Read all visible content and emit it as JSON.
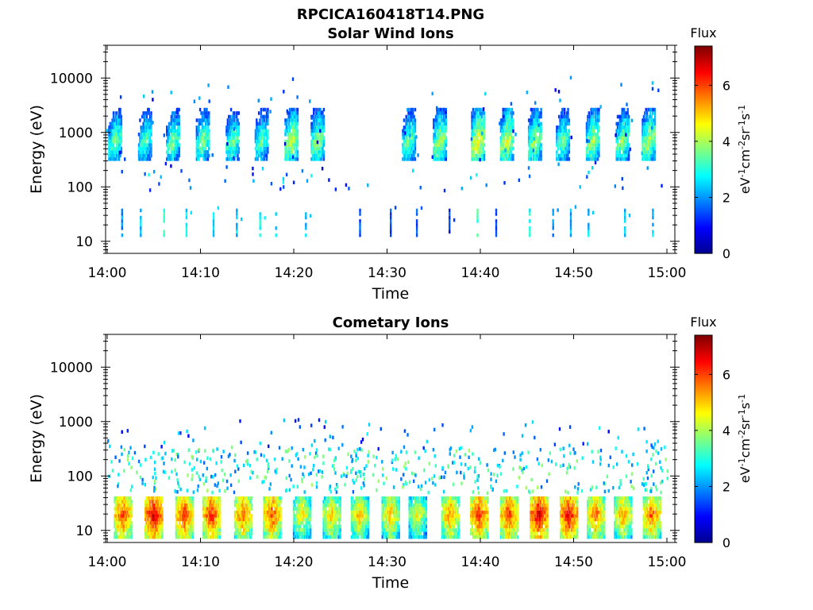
{
  "figure": {
    "filename": "RPCICA160418T14.PNG"
  },
  "colorbar": {
    "label": "Flux",
    "unit_parts": [
      "eV",
      "-1",
      "cm",
      "-2",
      "sr",
      "-1",
      "s",
      "-1"
    ],
    "range": [
      0,
      7.4
    ],
    "ticks": [
      0,
      2,
      4,
      6
    ],
    "colormap": [
      "#00008f",
      "#0000ff",
      "#0080ff",
      "#00ffff",
      "#80ff80",
      "#ffff00",
      "#ff8000",
      "#ff0000",
      "#800000"
    ]
  },
  "chart_data": [
    {
      "type": "heatmap",
      "title": "Solar Wind Ions",
      "xlabel": "Time",
      "ylabel": "Energy (eV)",
      "xlim": [
        "14:00",
        "15:00"
      ],
      "x_ticks": [
        "14:00",
        "14:10",
        "14:20",
        "14:30",
        "14:40",
        "14:50",
        "15:00"
      ],
      "ylim": [
        6,
        40000
      ],
      "y_scale": "log",
      "y_ticks": [
        10,
        100,
        1000,
        10000
      ],
      "z_label": "Flux",
      "features": {
        "main_beam": {
          "energy_range_eV": [
            300,
            2500
          ],
          "peak_flux": 4.5,
          "sweep_centers_min": [
            0.8,
            4.0,
            7.0,
            10.2,
            13.4,
            16.5,
            19.7,
            22.5,
            32.3,
            35.6,
            39.7,
            42.8,
            45.8,
            48.8,
            52.0,
            55.2,
            58.0
          ],
          "sweep_flux": [
            3.8,
            3.6,
            3.8,
            3.9,
            3.8,
            3.7,
            4.4,
            4.1,
            3.8,
            4.2,
            4.8,
            4.5,
            4.2,
            3.8,
            4.2,
            4.0,
            4.3
          ]
        },
        "low_energy_columns": {
          "energy_range_eV": [
            12,
            35
          ],
          "times_min": [
            1.5,
            3.5,
            6.0,
            8.4,
            11.3,
            13.8,
            16.3,
            18.0,
            21.2,
            27.0,
            30.3,
            33.1,
            36.6,
            39.6,
            41.6,
            45.2,
            47.7,
            49.6,
            51.5,
            55.4,
            58.4
          ],
          "flux": [
            2.0,
            2.4,
            3.2,
            2.6,
            2.6,
            2.4,
            2.8,
            2.5,
            2.4,
            1.5,
            1.4,
            1.6,
            1.3,
            3.2,
            1.4,
            2.9,
            2.0,
            2.2,
            2.4,
            2.3,
            2.4
          ]
        }
      }
    },
    {
      "type": "heatmap",
      "title": "Cometary Ions",
      "xlabel": "Time",
      "ylabel": "Energy (eV)",
      "xlim": [
        "14:00",
        "15:00"
      ],
      "x_ticks": [
        "14:00",
        "14:10",
        "14:20",
        "14:30",
        "14:40",
        "14:50",
        "15:00"
      ],
      "ylim": [
        6,
        40000
      ],
      "y_scale": "log",
      "y_ticks": [
        10,
        100,
        1000,
        10000
      ],
      "z_label": "Flux",
      "features": {
        "low_energy_band": {
          "energy_range_eV": [
            7,
            35
          ],
          "centers_min": [
            1.6,
            4.9,
            8.2,
            11.1,
            14.5,
            17.6,
            20.8,
            24.0,
            27.0,
            30.3,
            33.2,
            36.7,
            39.8,
            43.0,
            46.2,
            49.4,
            52.3,
            55.2,
            58.3
          ],
          "peak_flux": [
            6.2,
            6.8,
            6.2,
            6.3,
            5.9,
            6.1,
            5.0,
            5.2,
            5.2,
            5.3,
            4.8,
            5.6,
            6.3,
            6.2,
            6.8,
            6.6,
            5.8,
            5.5,
            5.9
          ]
        },
        "scattered_band_eV": [
          50,
          300
        ],
        "sparse_high_eV": [
          300,
          1000
        ]
      }
    }
  ]
}
